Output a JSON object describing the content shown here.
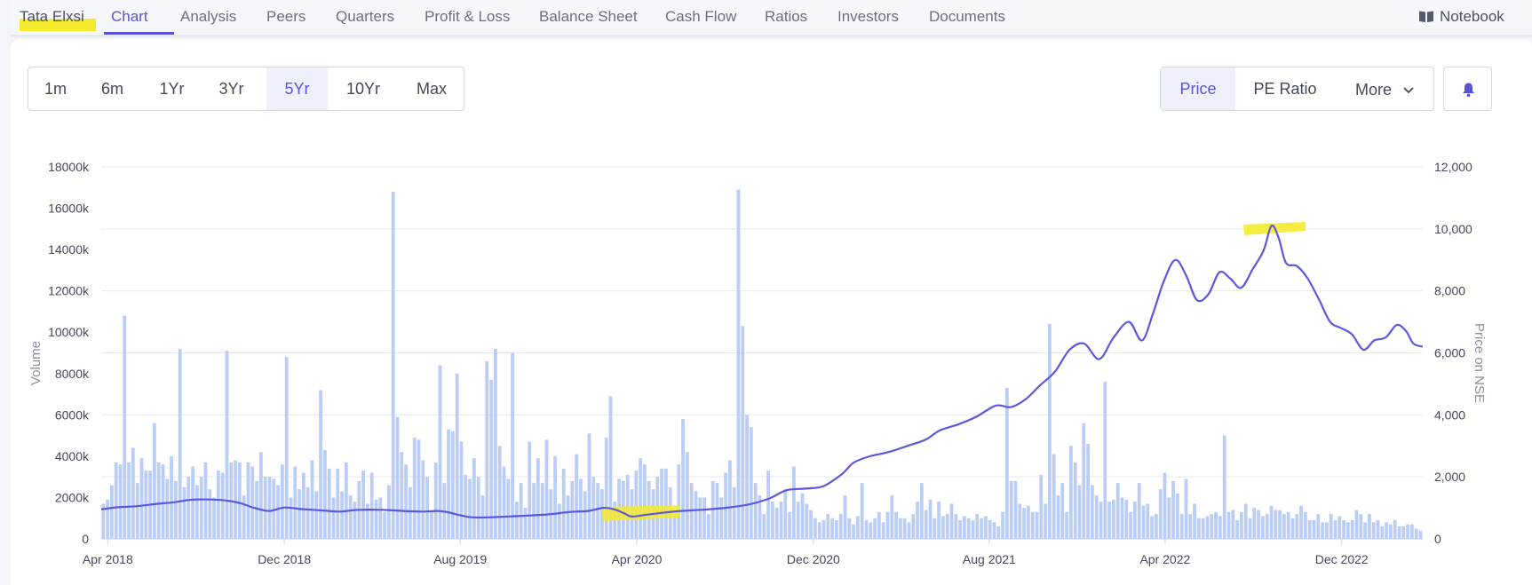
{
  "nav": {
    "brand": "Tata Elxsi",
    "tabs": [
      {
        "label": "Chart",
        "active": true
      },
      {
        "label": "Analysis"
      },
      {
        "label": "Peers"
      },
      {
        "label": "Quarters"
      },
      {
        "label": "Profit & Loss"
      },
      {
        "label": "Balance Sheet"
      },
      {
        "label": "Cash Flow"
      },
      {
        "label": "Ratios"
      },
      {
        "label": "Investors"
      },
      {
        "label": "Documents"
      }
    ],
    "notebook": "Notebook"
  },
  "controls": {
    "ranges": [
      {
        "label": "1m"
      },
      {
        "label": "6m"
      },
      {
        "label": "1Yr"
      },
      {
        "label": "3Yr"
      },
      {
        "label": "5Yr",
        "active": true
      },
      {
        "label": "10Yr"
      },
      {
        "label": "Max"
      }
    ],
    "metrics": [
      {
        "label": "Price",
        "active": true
      },
      {
        "label": "PE Ratio"
      },
      {
        "label": "More"
      }
    ],
    "alert_icon": "bell-icon",
    "more_icon": "chevron-down-icon"
  },
  "colors": {
    "accent": "#5a55d8",
    "bar": "#b9cdf6",
    "line": "#5d57e0",
    "highlight": "#f4ea2e"
  },
  "chart_data": {
    "type": "bar+line",
    "x_ticks": [
      "Apr 2018",
      "Dec 2018",
      "Aug 2019",
      "Apr 2020",
      "Dec 2020",
      "Aug 2021",
      "Apr 2022",
      "Dec 2022"
    ],
    "x_range": [
      "2018-03-23",
      "2023-03-23"
    ],
    "y_left": {
      "label": "Volume",
      "ticks": [
        "0",
        "2000k",
        "4000k",
        "6000k",
        "8000k",
        "10000k",
        "12000k",
        "14000k",
        "16000k",
        "18000k"
      ],
      "range": [
        0,
        18000
      ]
    },
    "y_right": {
      "label": "Price on NSE",
      "ticks": [
        "0",
        "2,000",
        "4,000",
        "6,000",
        "8,000",
        "10,000",
        "12,000"
      ],
      "range": [
        0,
        12000
      ]
    },
    "grid": true,
    "volume_series": {
      "name": "Volume",
      "unit": "k",
      "values": [
        1700,
        1900,
        2600,
        3700,
        3600,
        10800,
        3700,
        4400,
        2700,
        3900,
        3300,
        3300,
        5600,
        3700,
        3600,
        2900,
        4000,
        2800,
        9200,
        2500,
        3000,
        3500,
        2600,
        3000,
        3700,
        2400,
        2000,
        3300,
        3200,
        9100,
        3700,
        3800,
        3700,
        2100,
        3700,
        3500,
        2800,
        4200,
        3000,
        3000,
        2900,
        2600,
        3600,
        8800,
        2000,
        3500,
        2400,
        3200,
        2500,
        3800,
        2300,
        7200,
        4300,
        3400,
        2000,
        3400,
        2300,
        3700,
        2100,
        1800,
        2800,
        3300,
        1700,
        3200,
        1900,
        2000,
        1300,
        2600,
        16800,
        5900,
        4200,
        3600,
        2500,
        4900,
        4800,
        3800,
        3000,
        1300,
        3700,
        8400,
        2700,
        5300,
        5200,
        8000,
        4700,
        3100,
        2900,
        3900,
        3000,
        2100,
        8600,
        7700,
        9200,
        4500,
        3500,
        2900,
        9000,
        1800,
        2700,
        1500,
        4700,
        2700,
        3900,
        2700,
        4800,
        2400,
        4000,
        1700,
        3400,
        2100,
        2800,
        4100,
        2900,
        2300,
        5100,
        3000,
        2700,
        2400,
        4900,
        6900,
        1800,
        2900,
        2800,
        3100,
        2400,
        3300,
        3900,
        3600,
        2800,
        2400,
        3000,
        3400,
        3400,
        2500,
        1200,
        3600,
        5800,
        4200,
        2700,
        2300,
        2000,
        2000,
        1200,
        2800,
        2700,
        2000,
        3200,
        3800,
        2500,
        16900,
        10300,
        6000,
        5400,
        2700,
        2100,
        1200,
        3300,
        1800,
        1500,
        1800,
        2400,
        1300,
        3500,
        1800,
        2200,
        1700,
        1400,
        1000,
        800,
        900,
        1200,
        1000,
        900,
        1200,
        2100,
        1000,
        700,
        1100,
        2700,
        900,
        800,
        1000,
        1300,
        800,
        1300,
        2100,
        1300,
        1000,
        1000,
        800,
        1200,
        1800,
        2700,
        1400,
        1900,
        1000,
        1800,
        1100,
        1200,
        1700,
        1200,
        900,
        1100,
        1000,
        900,
        1200,
        1000,
        1100,
        900,
        800,
        600,
        1300,
        7300,
        2800,
        2800,
        1700,
        1500,
        1600,
        1300,
        1300,
        3100,
        1700,
        10400,
        4100,
        2100,
        2700,
        1300,
        4500,
        3700,
        2600,
        5600,
        4600,
        2600,
        2100,
        1800,
        7600,
        1800,
        1900,
        2700,
        2000,
        1900,
        1300,
        1800,
        2700,
        1600,
        1700,
        1100,
        1200,
        2400,
        3200,
        2000,
        2800,
        2200,
        1200,
        2900,
        1200,
        1700,
        1000,
        1000,
        1100,
        1200,
        1300,
        1100,
        5000,
        1300,
        1400,
        900,
        1300,
        1700,
        1000,
        1500,
        1400,
        1100,
        1200,
        1600,
        1400,
        1400,
        1200,
        1300,
        1000,
        1200,
        1600,
        1300,
        900,
        900,
        1200,
        800,
        800,
        1200,
        900,
        1100,
        900,
        800,
        900,
        1400,
        1200,
        800,
        1200,
        800,
        900,
        600,
        800,
        700,
        900,
        600,
        600,
        700,
        700,
        500,
        400
      ]
    },
    "price_series": {
      "name": "Price on NSE",
      "points": [
        [
          "2018-03-23",
          950
        ],
        [
          "2018-04-15",
          1020
        ],
        [
          "2018-05-10",
          1050
        ],
        [
          "2018-06-05",
          1120
        ],
        [
          "2018-07-01",
          1180
        ],
        [
          "2018-07-25",
          1260
        ],
        [
          "2018-08-20",
          1270
        ],
        [
          "2018-09-10",
          1240
        ],
        [
          "2018-10-01",
          1150
        ],
        [
          "2018-10-20",
          1000
        ],
        [
          "2018-11-10",
          900
        ],
        [
          "2018-12-01",
          1010
        ],
        [
          "2018-12-25",
          960
        ],
        [
          "2019-01-20",
          920
        ],
        [
          "2019-02-15",
          880
        ],
        [
          "2019-03-10",
          930
        ],
        [
          "2019-04-05",
          940
        ],
        [
          "2019-05-01",
          920
        ],
        [
          "2019-05-20",
          890
        ],
        [
          "2019-06-10",
          880
        ],
        [
          "2019-07-01",
          900
        ],
        [
          "2019-07-15",
          860
        ],
        [
          "2019-08-01",
          760
        ],
        [
          "2019-08-20",
          690
        ],
        [
          "2019-09-15",
          700
        ],
        [
          "2019-10-15",
          730
        ],
        [
          "2019-11-10",
          760
        ],
        [
          "2019-12-05",
          800
        ],
        [
          "2020-01-01",
          870
        ],
        [
          "2020-01-25",
          900
        ],
        [
          "2020-02-15",
          1000
        ],
        [
          "2020-03-01",
          950
        ],
        [
          "2020-03-15",
          820
        ],
        [
          "2020-03-25",
          720
        ],
        [
          "2020-04-15",
          780
        ],
        [
          "2020-05-10",
          850
        ],
        [
          "2020-06-01",
          900
        ],
        [
          "2020-07-01",
          940
        ],
        [
          "2020-08-01",
          1000
        ],
        [
          "2020-09-01",
          1100
        ],
        [
          "2020-10-01",
          1300
        ],
        [
          "2020-10-25",
          1570
        ],
        [
          "2020-11-20",
          1620
        ],
        [
          "2020-12-15",
          1700
        ],
        [
          "2021-01-10",
          2100
        ],
        [
          "2021-01-25",
          2450
        ],
        [
          "2021-02-15",
          2650
        ],
        [
          "2021-03-15",
          2800
        ],
        [
          "2021-04-10",
          3000
        ],
        [
          "2021-05-05",
          3200
        ],
        [
          "2021-05-25",
          3500
        ],
        [
          "2021-06-20",
          3700
        ],
        [
          "2021-07-15",
          3950
        ],
        [
          "2021-08-10",
          4300
        ],
        [
          "2021-08-31",
          4250
        ],
        [
          "2021-09-20",
          4500
        ],
        [
          "2021-10-10",
          4950
        ],
        [
          "2021-10-31",
          5400
        ],
        [
          "2021-11-20",
          6100
        ],
        [
          "2021-12-10",
          6300
        ],
        [
          "2021-12-31",
          5800
        ],
        [
          "2022-01-20",
          6500
        ],
        [
          "2022-02-10",
          7000
        ],
        [
          "2022-02-28",
          6400
        ],
        [
          "2022-03-15",
          7250
        ],
        [
          "2022-03-30",
          8300
        ],
        [
          "2022-04-15",
          9000
        ],
        [
          "2022-04-30",
          8500
        ],
        [
          "2022-05-15",
          7700
        ],
        [
          "2022-05-31",
          7900
        ],
        [
          "2022-06-15",
          8600
        ],
        [
          "2022-06-30",
          8400
        ],
        [
          "2022-07-15",
          8100
        ],
        [
          "2022-07-31",
          8700
        ],
        [
          "2022-08-15",
          9300
        ],
        [
          "2022-08-26",
          10100
        ],
        [
          "2022-09-05",
          9700
        ],
        [
          "2022-09-15",
          8900
        ],
        [
          "2022-09-30",
          8800
        ],
        [
          "2022-10-15",
          8400
        ],
        [
          "2022-10-31",
          7700
        ],
        [
          "2022-11-15",
          7000
        ],
        [
          "2022-11-30",
          6800
        ],
        [
          "2022-12-15",
          6600
        ],
        [
          "2022-12-31",
          6100
        ],
        [
          "2023-01-15",
          6400
        ],
        [
          "2023-01-31",
          6500
        ],
        [
          "2023-02-15",
          6900
        ],
        [
          "2023-02-28",
          6700
        ],
        [
          "2023-03-10",
          6300
        ],
        [
          "2023-03-23",
          6200
        ]
      ]
    }
  }
}
